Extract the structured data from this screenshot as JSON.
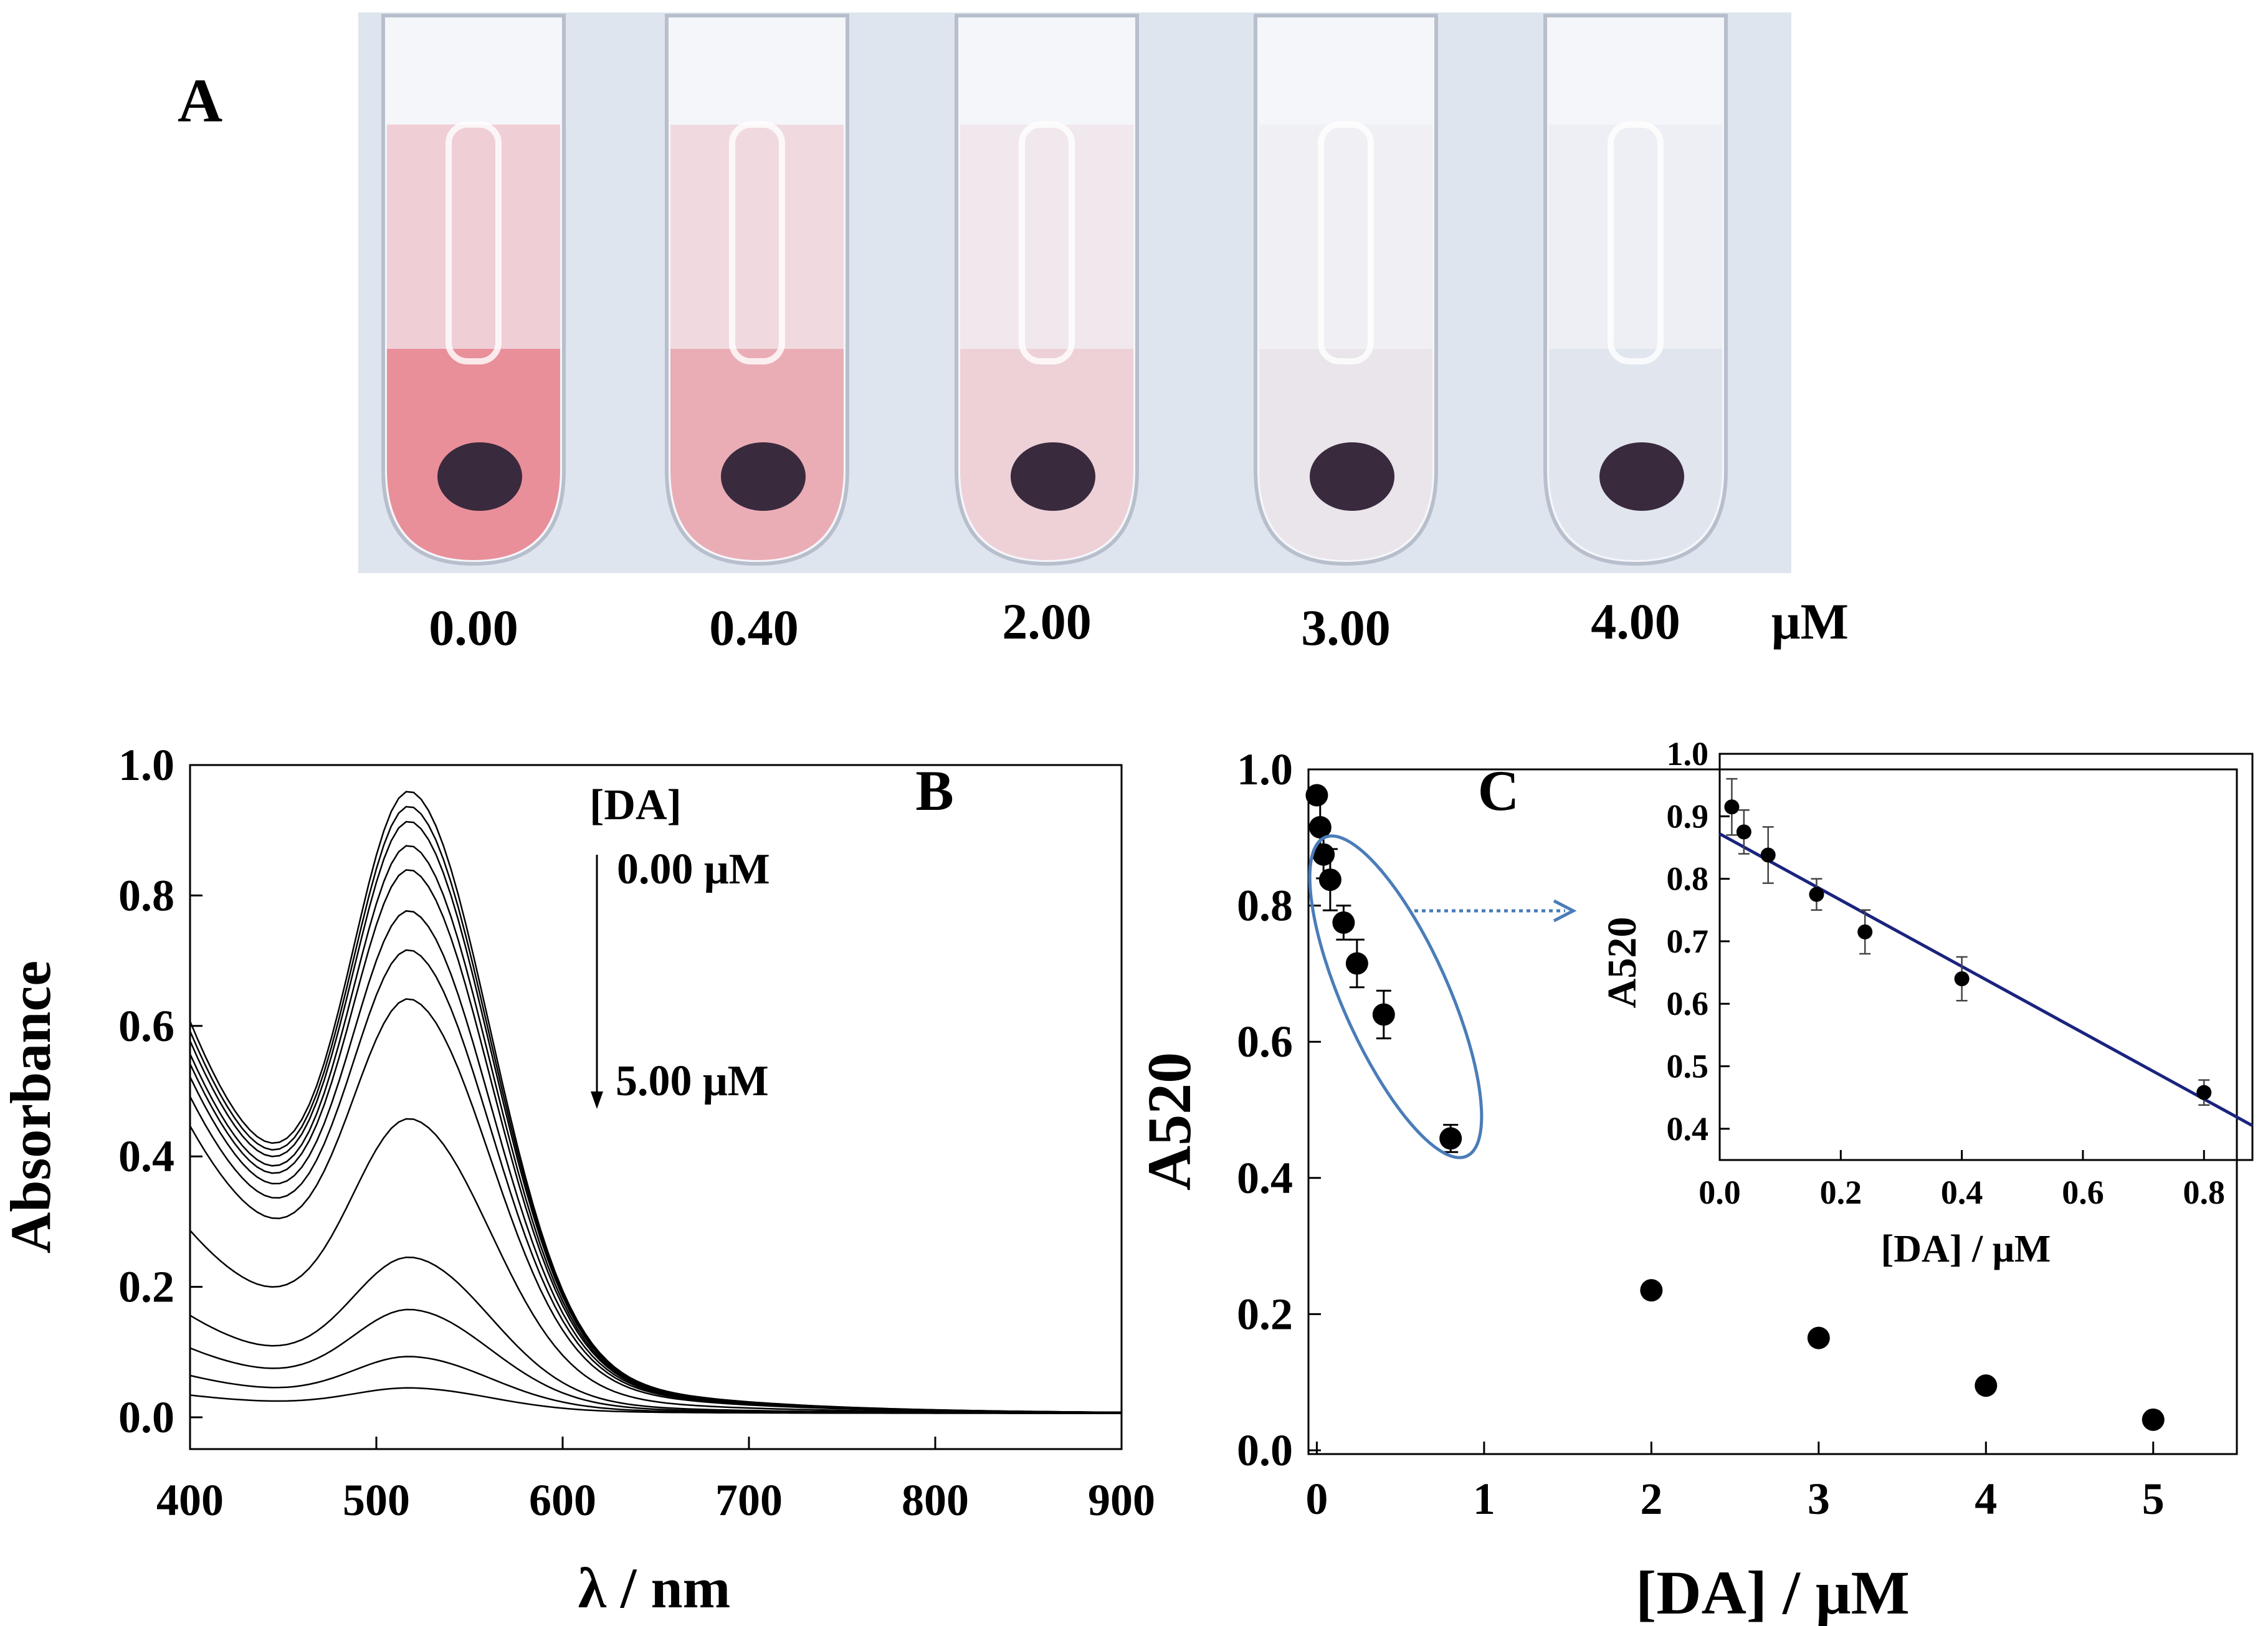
{
  "panel_a": {
    "label": "A",
    "concentrations": [
      "0.00",
      "0.40",
      "2.00",
      "3.00",
      "4.00"
    ],
    "unit": "μM",
    "tube_colors": [
      "#e8848e",
      "#e9a5ae",
      "#eccdd3",
      "#e8e3e9",
      "#dfe3ec"
    ]
  },
  "chart_data": [
    {
      "id": "B",
      "type": "line",
      "panel_label": "B",
      "title": "",
      "xlabel": "λ / nm",
      "ylabel": "Absorbance",
      "xlim": [
        400,
        900
      ],
      "ylim": [
        0,
        1.0
      ],
      "xticks": [
        "400",
        "500",
        "600",
        "700",
        "800",
        "900"
      ],
      "yticks": [
        "0.0",
        "0.2",
        "0.4",
        "0.6",
        "0.8",
        "1.0"
      ],
      "legend": {
        "title": "[DA]",
        "start": "0.00 μM",
        "end": "5.00 μM",
        "placement": "top-center"
      },
      "peak_wavelength": 520,
      "series": [
        {
          "name": "c1",
          "peak": 0.958,
          "baseline400": 0.6
        },
        {
          "name": "c2",
          "peak": 0.935,
          "baseline400": 0.585
        },
        {
          "name": "c3",
          "peak": 0.912,
          "baseline400": 0.57
        },
        {
          "name": "c4",
          "peak": 0.875,
          "baseline400": 0.55
        },
        {
          "name": "c5",
          "peak": 0.838,
          "baseline400": 0.535
        },
        {
          "name": "c6",
          "peak": 0.775,
          "baseline400": 0.515
        },
        {
          "name": "c7",
          "peak": 0.715,
          "baseline400": 0.485
        },
        {
          "name": "c8",
          "peak": 0.64,
          "baseline400": 0.44
        },
        {
          "name": "c9",
          "peak": 0.457,
          "baseline400": 0.28
        },
        {
          "name": "c10",
          "peak": 0.245,
          "baseline400": 0.15
        },
        {
          "name": "c11",
          "peak": 0.165,
          "baseline400": 0.1
        },
        {
          "name": "c12",
          "peak": 0.093,
          "baseline400": 0.058
        },
        {
          "name": "c13",
          "peak": 0.045,
          "baseline400": 0.028
        }
      ]
    },
    {
      "id": "C",
      "type": "scatter",
      "panel_label": "C",
      "title": "",
      "xlabel": "[DA] / μM",
      "ylabel": "A520",
      "xlim": [
        -0.05,
        5.5
      ],
      "ylim": [
        0,
        1.0
      ],
      "xticks": [
        "0",
        "1",
        "2",
        "3",
        "4",
        "5"
      ],
      "yticks": [
        "0.0",
        "0.2",
        "0.4",
        "0.6",
        "0.8",
        "1.0"
      ],
      "x": [
        0,
        0.02,
        0.04,
        0.08,
        0.16,
        0.24,
        0.4,
        0.8,
        2,
        3,
        4,
        5
      ],
      "y": [
        0.962,
        0.915,
        0.875,
        0.838,
        0.775,
        0.715,
        0.64,
        0.458,
        0.235,
        0.165,
        0.095,
        0.045
      ],
      "errors": [
        0,
        0.045,
        0.035,
        0.045,
        0.025,
        0.035,
        0.035,
        0.02,
        0,
        0,
        0,
        0
      ],
      "annotation": "ellipse around the linear range, arrow to inset"
    },
    {
      "id": "C-inset",
      "type": "scatter",
      "title": "",
      "xlabel": "[DA] / μM",
      "ylabel": "A520",
      "xlim": [
        0,
        0.88
      ],
      "ylim": [
        0.35,
        1.0
      ],
      "xticks": [
        "0.0",
        "0.2",
        "0.4",
        "0.6",
        "0.8"
      ],
      "yticks": [
        "0.4",
        "0.5",
        "0.6",
        "0.7",
        "0.8",
        "0.9",
        "1.0"
      ],
      "x": [
        0.02,
        0.04,
        0.08,
        0.16,
        0.24,
        0.4,
        0.8
      ],
      "y": [
        0.915,
        0.875,
        0.838,
        0.775,
        0.715,
        0.64,
        0.458
      ],
      "errors": [
        0.045,
        0.035,
        0.045,
        0.025,
        0.035,
        0.035,
        0.02
      ],
      "fit_line": {
        "x": [
          0,
          0.88
        ],
        "y": [
          0.872,
          0.405
        ],
        "color": "#1a237e"
      }
    }
  ]
}
